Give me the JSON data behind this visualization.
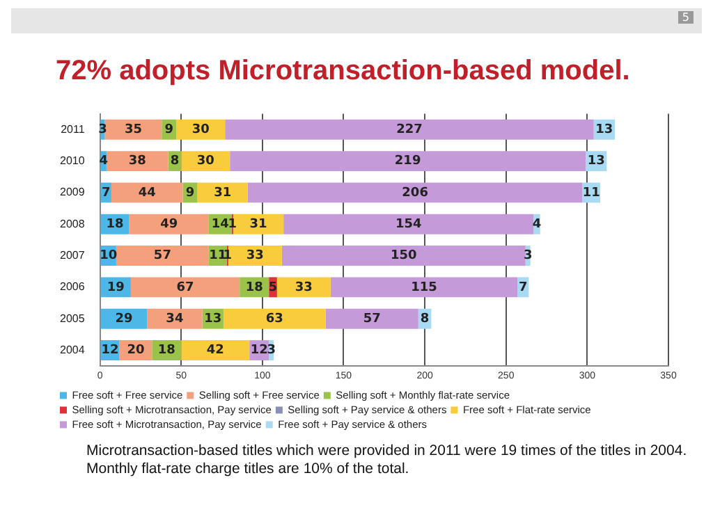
{
  "chart_data": {
    "type": "bar",
    "orientation": "horizontal",
    "stacked": true,
    "title": "72% adopts Microtransaction-based model.",
    "categories": [
      "2011",
      "2010",
      "2009",
      "2008",
      "2007",
      "2006",
      "2005",
      "2004"
    ],
    "series": [
      {
        "name": "Free soft + Free service",
        "color": "#4db8e8",
        "values": [
          3,
          4,
          7,
          18,
          10,
          19,
          29,
          12
        ]
      },
      {
        "name": "Selling soft + Free service",
        "color": "#f4a07c",
        "values": [
          35,
          38,
          44,
          49,
          57,
          67,
          34,
          20
        ]
      },
      {
        "name": "Selling soft + Monthly flat-rate service",
        "color": "#9bc34a",
        "values": [
          9,
          8,
          9,
          14,
          11,
          18,
          13,
          18
        ]
      },
      {
        "name": "Selling soft + Microtransaction, Pay service",
        "color": "#e0303a",
        "values": [
          null,
          null,
          null,
          1,
          1,
          5,
          null,
          null
        ]
      },
      {
        "name": "Selling soft + Pay service & others",
        "color": "#8a8fb8",
        "values": [
          null,
          null,
          null,
          null,
          null,
          null,
          null,
          null
        ]
      },
      {
        "name": "Free soft + Flat-rate service",
        "color": "#f8cc3c",
        "values": [
          30,
          30,
          31,
          31,
          33,
          33,
          63,
          42
        ]
      },
      {
        "name": "Free soft + Microtransaction, Pay service",
        "color": "#c59ad8",
        "values": [
          227,
          219,
          206,
          154,
          150,
          115,
          57,
          12
        ]
      },
      {
        "name": "Free soft + Pay service & others",
        "color": "#a8daf4",
        "values": [
          13,
          13,
          11,
          4,
          3,
          7,
          8,
          3
        ]
      }
    ],
    "xlim": [
      0,
      350
    ],
    "xticks": [
      0,
      50,
      100,
      150,
      200,
      250,
      300,
      350
    ],
    "grid": "x",
    "legend": "bottom",
    "data_labels": true,
    "annotations": [
      "5",
      "Microtransaction-based titles which were provided in 2011 were 19 times of the titles in 2004.",
      "Monthly flat-rate charge titles are 10% of the total."
    ]
  }
}
